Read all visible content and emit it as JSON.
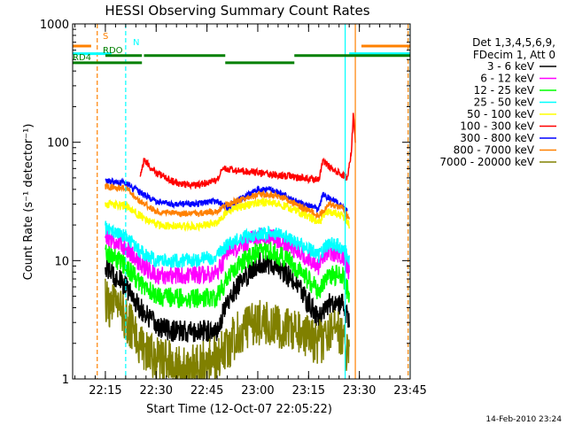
{
  "chart_data": {
    "type": "line",
    "title": "HESSI Observing Summary Count Rates",
    "xlabel": "Start Time (12-Oct-07 22:05:22)",
    "ylabel": "Count Rate (s⁻¹ detector⁻¹)",
    "footer_date": "14-Feb-2010 23:24",
    "yscale": "log",
    "xlim": [
      22.089,
      23.75
    ],
    "ylim": [
      1,
      1000
    ],
    "grid": false,
    "xticks": [
      {
        "v": 22.25,
        "label": "22:15"
      },
      {
        "v": 22.5,
        "label": "22:30"
      },
      {
        "v": 22.75,
        "label": "22:45"
      },
      {
        "v": 23.0,
        "label": "23:00"
      },
      {
        "v": 23.25,
        "label": "23:15"
      },
      {
        "v": 23.5,
        "label": "23:30"
      },
      {
        "v": 23.75,
        "label": "23:45"
      }
    ],
    "yticks": [
      {
        "v": 1,
        "label": "1"
      },
      {
        "v": 10,
        "label": "10"
      },
      {
        "v": 100,
        "label": "100"
      },
      {
        "v": 1000,
        "label": "1000"
      }
    ],
    "legend": {
      "placement": "right",
      "header": [
        "Det 1,3,4,5,6,9,",
        "FDecim 1, Att 0"
      ],
      "entries": [
        {
          "label": "3 - 6 keV",
          "color": "#000000"
        },
        {
          "label": "6 - 12 keV",
          "color": "#ff00ff"
        },
        {
          "label": "12 - 25 keV",
          "color": "#00ff00"
        },
        {
          "label": "25 - 50 keV",
          "color": "#00ffff"
        },
        {
          "label": "50 - 100 keV",
          "color": "#ffff00"
        },
        {
          "label": "100 - 300 keV",
          "color": "#ff0000"
        },
        {
          "label": "300 - 800 keV",
          "color": "#0000ff"
        },
        {
          "label": "800 - 7000 keV",
          "color": "#ff8000"
        },
        {
          "label": "7000 - 20000 keV",
          "color": "#808000"
        }
      ]
    },
    "flag_labels": [
      {
        "text": "S",
        "color": "#ff8000"
      },
      {
        "text": "N",
        "color": "#00ffff"
      },
      {
        "text": "RDO",
        "color": "#008000"
      },
      {
        "text": "RD4",
        "color": "#008000"
      }
    ],
    "flags": [
      {
        "color": "#ff8000",
        "y": 650,
        "segments": [
          [
            22.08,
            22.18
          ],
          [
            23.51,
            23.75
          ]
        ]
      },
      {
        "color": "#00ffff",
        "y": 560,
        "segments": [
          [
            22.08,
            22.28
          ],
          [
            23.45,
            23.75
          ]
        ]
      },
      {
        "color": "#008000",
        "y": 540,
        "segments": [
          [
            22.25,
            22.43
          ],
          [
            22.44,
            22.84
          ],
          [
            23.18,
            23.75
          ]
        ]
      },
      {
        "color": "#008000",
        "y": 470,
        "segments": [
          [
            22.08,
            22.43
          ],
          [
            22.84,
            23.18
          ]
        ]
      }
    ],
    "vlines": [
      {
        "x": 22.21,
        "color": "#ff8000",
        "dash": true
      },
      {
        "x": 22.35,
        "color": "#00ffff",
        "dash": true
      },
      {
        "x": 23.43,
        "color": "#00ffff",
        "dash": false
      },
      {
        "x": 23.48,
        "color": "#ff8000",
        "dash": false
      },
      {
        "x": 23.74,
        "color": "#ff8000",
        "dash": true
      },
      {
        "x": 23.75,
        "color": "#00ffff",
        "dash": true
      }
    ],
    "series": [
      {
        "name": "3 - 6 keV",
        "color": "#000000",
        "noise": 0.22,
        "x": [
          22.25,
          22.35,
          22.42,
          22.5,
          22.6,
          22.7,
          22.8,
          22.85,
          22.9,
          23.0,
          23.06,
          23.13,
          23.2,
          23.3,
          23.35,
          23.42,
          23.45
        ],
        "y": [
          9,
          6,
          4,
          2.8,
          2.5,
          2.5,
          2.6,
          4.5,
          6,
          9.5,
          9.5,
          8,
          6,
          3.2,
          4.3,
          4.3,
          3
        ]
      },
      {
        "name": "6 - 12 keV",
        "color": "#ff00ff",
        "noise": 0.18,
        "x": [
          22.25,
          22.35,
          22.42,
          22.5,
          22.6,
          22.7,
          22.8,
          22.85,
          22.9,
          23.0,
          23.06,
          23.13,
          23.2,
          23.3,
          23.35,
          23.42,
          23.45
        ],
        "y": [
          16,
          13,
          9.5,
          7.5,
          7.5,
          7.5,
          8,
          11,
          13,
          16,
          16,
          14,
          12,
          9,
          12,
          11,
          8
        ]
      },
      {
        "name": "12 - 25 keV",
        "color": "#00ff00",
        "noise": 0.2,
        "x": [
          22.25,
          22.35,
          22.42,
          22.5,
          22.6,
          22.7,
          22.8,
          22.85,
          22.9,
          23.0,
          23.06,
          23.13,
          23.2,
          23.3,
          23.35,
          23.42,
          23.45
        ],
        "y": [
          12,
          9,
          6.5,
          5,
          4.8,
          4.8,
          5,
          7,
          9,
          12,
          12,
          10.5,
          8.5,
          5.5,
          7.5,
          7.5,
          5
        ]
      },
      {
        "name": "25 - 50 keV",
        "color": "#00ffff",
        "noise": 0.14,
        "x": [
          22.25,
          22.35,
          22.42,
          22.5,
          22.6,
          22.7,
          22.8,
          22.85,
          22.9,
          23.0,
          23.06,
          23.13,
          23.2,
          23.3,
          23.35,
          23.42,
          23.45
        ],
        "y": [
          19,
          16,
          12,
          10,
          10,
          10,
          11,
          13.5,
          15,
          17,
          17,
          16,
          14,
          11,
          14,
          13,
          10
        ]
      },
      {
        "name": "50 - 100 keV",
        "color": "#ffff00",
        "noise": 0.08,
        "x": [
          22.25,
          22.35,
          22.42,
          22.5,
          22.6,
          22.7,
          22.8,
          22.85,
          22.9,
          23.0,
          23.06,
          23.13,
          23.2,
          23.3,
          23.35,
          23.42,
          23.45
        ],
        "y": [
          30,
          29,
          24,
          20,
          19.5,
          19.5,
          21,
          26,
          28,
          31,
          31,
          29,
          26,
          21,
          26,
          24,
          20
        ]
      },
      {
        "name": "100 - 300 keV",
        "color": "#ff0000",
        "noise": 0.07,
        "x": [
          22.42,
          22.44,
          22.5,
          22.6,
          22.7,
          22.8,
          22.83,
          23.3,
          23.32,
          23.38,
          23.44,
          23.46,
          23.47,
          23.48
        ],
        "y": [
          50,
          70,
          55,
          45,
          43,
          48,
          60,
          48,
          68,
          58,
          50,
          80,
          180,
          100
        ]
      },
      {
        "name": "300 - 800 keV",
        "color": "#0000ff",
        "noise": 0.06,
        "x": [
          22.25,
          22.35,
          22.42,
          22.5,
          22.6,
          22.7,
          22.8,
          22.85,
          22.9,
          23.0,
          23.06,
          23.13,
          23.2,
          23.3,
          23.32,
          23.38,
          23.44
        ],
        "y": [
          47,
          45,
          38,
          31,
          30,
          30,
          32,
          28,
          32,
          40,
          40,
          36,
          31,
          27,
          36,
          32,
          26
        ]
      },
      {
        "name": "800 - 7000 keV",
        "color": "#ff8000",
        "noise": 0.06,
        "x": [
          22.25,
          22.35,
          22.42,
          22.5,
          22.6,
          22.7,
          22.8,
          22.85,
          22.9,
          23.0,
          23.06,
          23.13,
          23.2,
          23.3,
          23.35,
          23.42,
          23.45
        ],
        "y": [
          42,
          41,
          32,
          26,
          25,
          25,
          26,
          30,
          32,
          36,
          36,
          34,
          29,
          24,
          30,
          28,
          22
        ]
      },
      {
        "name": "7000 - 20000 keV",
        "color": "#808000",
        "noise": 0.45,
        "x": [
          22.25,
          22.35,
          22.42,
          22.5,
          22.6,
          22.7,
          22.8,
          22.85,
          22.9,
          23.0,
          23.06,
          23.13,
          23.2,
          23.3,
          23.35,
          23.42,
          23.45
        ],
        "y": [
          4.5,
          3.3,
          2.0,
          1.5,
          1.3,
          1.3,
          1.5,
          1.8,
          2.5,
          3,
          3,
          2.7,
          2.5,
          2.0,
          2.5,
          2.5,
          1.4
        ]
      }
    ]
  }
}
